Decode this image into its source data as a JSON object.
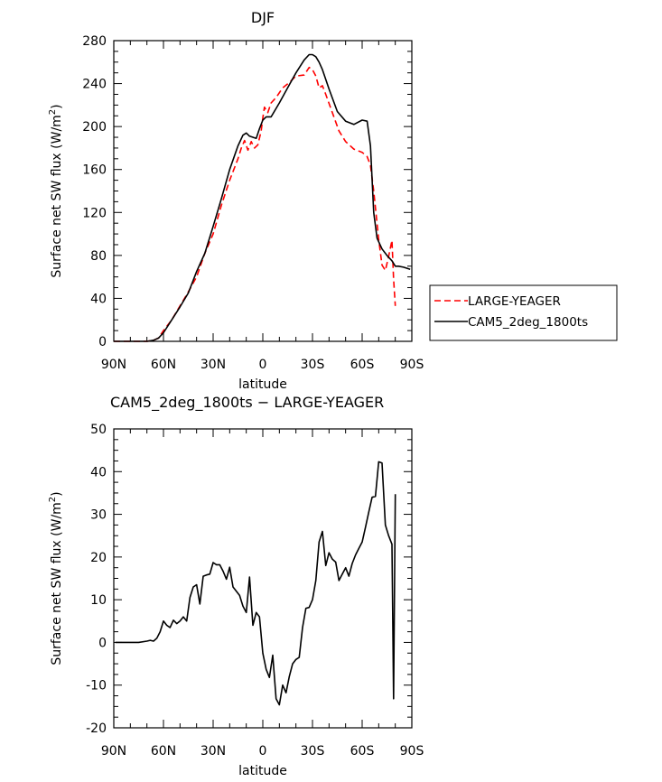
{
  "chart_data": [
    {
      "type": "line",
      "title": "DJF",
      "xlabel": "latitude",
      "ylabel": "Surface net SW flux (W/m²)",
      "xticks": [
        {
          "v": 90,
          "label": "90N"
        },
        {
          "v": 60,
          "label": "60N"
        },
        {
          "v": 30,
          "label": "30N"
        },
        {
          "v": 0,
          "label": "0"
        },
        {
          "v": -30,
          "label": "30S"
        },
        {
          "v": -60,
          "label": "60S"
        },
        {
          "v": -90,
          "label": "90S"
        }
      ],
      "xlim": [
        90,
        -90
      ],
      "ylim": [
        0,
        280
      ],
      "yticks": [
        0,
        40,
        80,
        120,
        160,
        200,
        240,
        280
      ],
      "legend_position": "right",
      "series": [
        {
          "name": "LARGE-YEAGER",
          "color": "#ff0000",
          "dash": true,
          "x": [
            90,
            80,
            70,
            66,
            63,
            60,
            55,
            50,
            45,
            40,
            35,
            30,
            25,
            20,
            15,
            13,
            11,
            9,
            7,
            5,
            3,
            1,
            0,
            -1,
            -3,
            -5,
            -8,
            -12,
            -16,
            -20,
            -25,
            -28,
            -30,
            -32,
            -34,
            -36,
            -38,
            -42,
            -46,
            -50,
            -55,
            -60,
            -63,
            -65,
            -67,
            -70,
            -72,
            -74,
            -76,
            -78,
            -79,
            -80
          ],
          "y": [
            0,
            0,
            0,
            1,
            3,
            10,
            20,
            33,
            46,
            60,
            82,
            100,
            127,
            150,
            170,
            180,
            187,
            178,
            186,
            180,
            183,
            196,
            208,
            218,
            213,
            222,
            227,
            236,
            241,
            247,
            248,
            255,
            253,
            247,
            236,
            238,
            230,
            213,
            196,
            186,
            179,
            176,
            172,
            164,
            140,
            95,
            71,
            66,
            79,
            94,
            58,
            33
          ]
        },
        {
          "name": "CAM5_2deg_1800ts",
          "color": "#000000",
          "dash": false,
          "x": [
            90,
            80,
            70,
            66,
            63,
            60,
            55,
            50,
            45,
            40,
            35,
            30,
            25,
            20,
            15,
            12,
            10,
            8,
            6,
            4,
            2,
            0,
            -2,
            -5,
            -10,
            -15,
            -20,
            -25,
            -28,
            -30,
            -32,
            -34,
            -36,
            -40,
            -45,
            -50,
            -55,
            -60,
            -63,
            -65,
            -67,
            -69,
            -72,
            -75,
            -78,
            -80,
            -82,
            -85,
            -89
          ],
          "y": [
            0,
            0,
            0,
            1,
            3,
            8,
            20,
            32,
            45,
            65,
            82,
            107,
            133,
            160,
            182,
            192,
            194,
            191,
            190,
            189,
            198,
            206,
            209,
            209,
            222,
            236,
            250,
            262,
            267,
            267,
            265,
            260,
            253,
            235,
            214,
            205,
            202,
            206,
            205,
            182,
            120,
            96,
            86,
            80,
            75,
            70,
            70,
            69,
            67
          ]
        }
      ]
    },
    {
      "type": "line",
      "title": "CAM5_2deg_1800ts − LARGE-YEAGER",
      "xlabel": "latitude",
      "ylabel": "Surface net SW flux (W/m²)",
      "xticks": [
        {
          "v": 90,
          "label": "90N"
        },
        {
          "v": 60,
          "label": "60N"
        },
        {
          "v": 30,
          "label": "30N"
        },
        {
          "v": 0,
          "label": "0"
        },
        {
          "v": -30,
          "label": "30S"
        },
        {
          "v": -60,
          "label": "60S"
        },
        {
          "v": -90,
          "label": "90S"
        }
      ],
      "xlim": [
        90,
        -90
      ],
      "ylim": [
        -20,
        50
      ],
      "yticks": [
        -20,
        -10,
        0,
        10,
        20,
        30,
        40,
        50
      ],
      "series": [
        {
          "color": "#000000",
          "dash": false,
          "x": [
            89,
            80,
            75,
            70,
            68,
            66,
            64,
            62,
            60,
            58,
            56,
            54,
            52,
            50,
            48,
            46,
            44,
            42,
            40,
            38,
            36,
            34,
            32,
            30,
            28,
            26,
            24,
            22,
            20,
            18,
            16,
            14,
            12,
            10,
            8,
            6,
            4,
            2,
            0,
            -2,
            -4,
            -6,
            -8,
            -10,
            -12,
            -14,
            -16,
            -18,
            -20,
            -22,
            -24,
            -26,
            -28,
            -30,
            -32,
            -34,
            -36,
            -38,
            -40,
            -42,
            -44,
            -46,
            -48,
            -50,
            -52,
            -54,
            -56,
            -58,
            -60,
            -62,
            -64,
            -66,
            -68,
            -70,
            -72,
            -74,
            -76,
            -78,
            -79,
            -80
          ],
          "y": [
            0,
            0,
            0,
            0.3,
            0.5,
            0.3,
            1,
            2.5,
            5,
            4,
            3.5,
            5.2,
            4.4,
            5,
            6,
            5,
            10.5,
            13,
            13.5,
            9,
            15.5,
            15.8,
            16,
            18.7,
            18.2,
            18.2,
            16.7,
            14.8,
            17.6,
            13,
            12,
            11,
            8.5,
            7,
            15.3,
            4,
            7,
            6,
            -2.5,
            -6.3,
            -8.2,
            -3,
            -13.2,
            -14.6,
            -10,
            -11.8,
            -8,
            -5,
            -4,
            -3.5,
            3.5,
            8,
            8.2,
            10,
            14.5,
            23.5,
            26,
            18,
            21,
            19.5,
            18.8,
            14.5,
            16,
            17.5,
            15.5,
            18.5,
            20.5,
            22,
            23.5,
            27,
            30.5,
            34,
            34.2,
            42.3,
            42,
            27.5,
            25,
            23,
            -13.2,
            34.7
          ]
        }
      ]
    }
  ]
}
